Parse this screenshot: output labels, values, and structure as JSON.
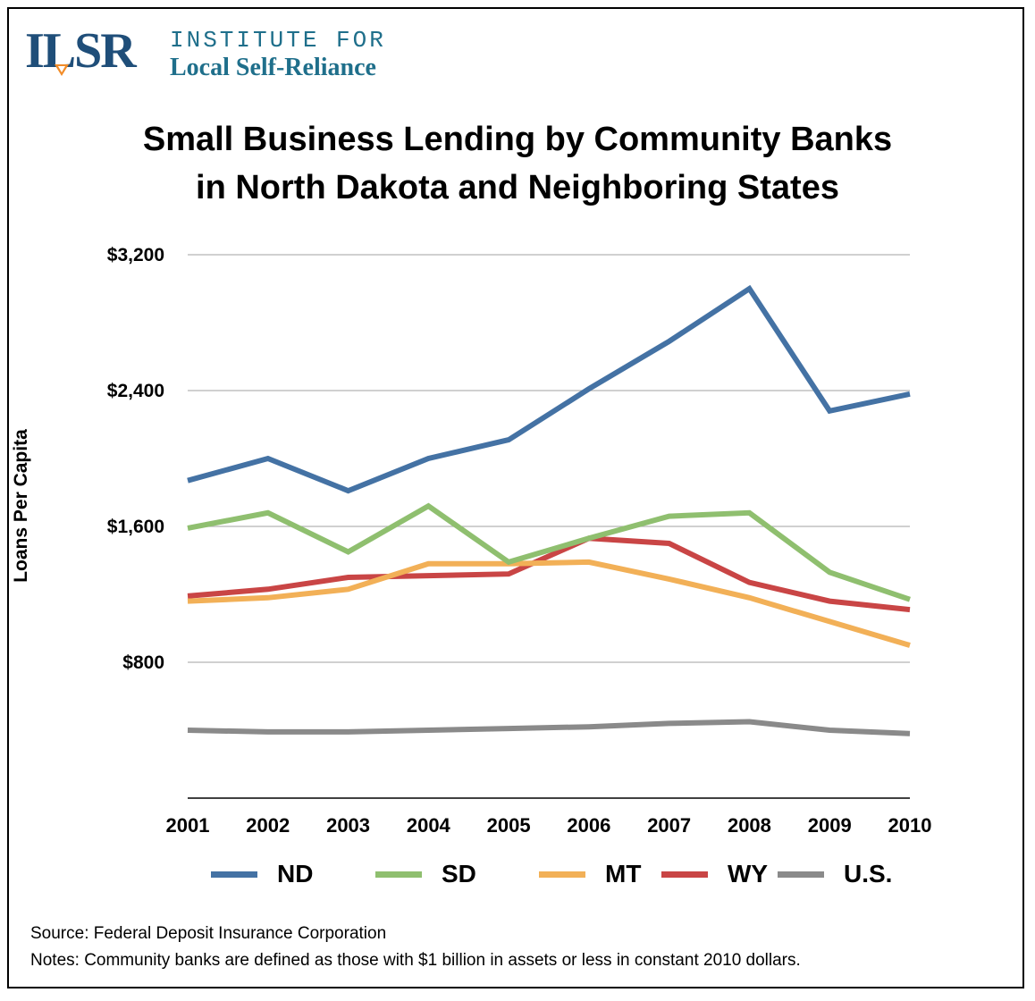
{
  "logo": {
    "mark": "ILSR",
    "line1": "INSTITUTE FOR",
    "line2": "Local Self-Reliance",
    "brand_color": "#1f4e79",
    "accent_color": "#f28c28"
  },
  "chart_data": {
    "type": "line",
    "title_line1": "Small Business Lending by Community Banks",
    "title_line2": "in North Dakota and Neighboring States",
    "xlabel": "",
    "ylabel": "Loans Per Capita",
    "x": [
      "2001",
      "2002",
      "2003",
      "2004",
      "2005",
      "2006",
      "2007",
      "2008",
      "2009",
      "2010"
    ],
    "ylim": [
      0,
      3200
    ],
    "yticks": [
      800,
      1600,
      2400,
      3200
    ],
    "ytick_labels": [
      "$800",
      "$1,600",
      "$2,400",
      "$3,200"
    ],
    "grid": true,
    "legend_position": "bottom",
    "series": [
      {
        "name": "ND",
        "color": "#4472a4",
        "values": [
          1870,
          2000,
          1810,
          2000,
          2110,
          2410,
          2690,
          3000,
          2280,
          2380
        ]
      },
      {
        "name": "SD",
        "color": "#8fbf6f",
        "values": [
          1590,
          1680,
          1450,
          1720,
          1390,
          1530,
          1660,
          1680,
          1330,
          1170
        ]
      },
      {
        "name": "MT",
        "color": "#f2b057",
        "values": [
          1160,
          1180,
          1230,
          1380,
          1380,
          1390,
          1290,
          1180,
          1040,
          900
        ]
      },
      {
        "name": "WY",
        "color": "#c94545",
        "values": [
          1190,
          1230,
          1300,
          1310,
          1320,
          1530,
          1500,
          1270,
          1160,
          1110
        ]
      },
      {
        "name": "U.S.",
        "color": "#8a8a8a",
        "values": [
          400,
          390,
          390,
          400,
          410,
          420,
          440,
          450,
          400,
          380
        ]
      }
    ]
  },
  "footer": {
    "source": "Source: Federal Deposit Insurance Corporation",
    "notes": "Notes: Community banks are defined as those with $1 billion in assets or less in constant 2010 dollars."
  }
}
